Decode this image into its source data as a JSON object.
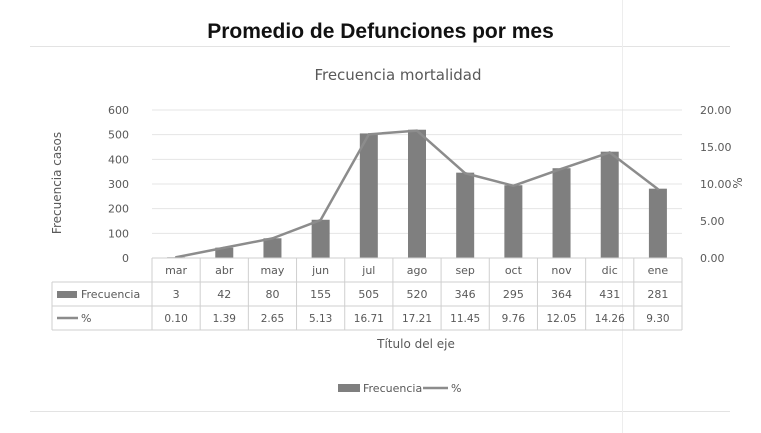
{
  "page": {
    "heading": "Promedio de Defunciones por mes"
  },
  "chart_data": {
    "type": "bar",
    "title": "Frecuencia mortalidad",
    "xlabel": "Título del eje",
    "ylabel": "Frecuencia casos",
    "y2label": "%",
    "ylim": [
      0,
      600
    ],
    "yticks": [
      "0",
      "100",
      "200",
      "300",
      "400",
      "500",
      "600"
    ],
    "y2lim": [
      0,
      20
    ],
    "y2ticks": [
      "0.00",
      "5.00",
      "10.00",
      "15.00",
      "20.00"
    ],
    "categories": [
      "mar",
      "abr",
      "may",
      "jun",
      "jul",
      "ago",
      "sep",
      "oct",
      "nov",
      "dic",
      "ene"
    ],
    "series": [
      {
        "name": "Frecuencia",
        "type": "bar",
        "axis": "left",
        "color": "#7f7f7f",
        "values": [
          3,
          42,
          80,
          155,
          505,
          520,
          346,
          295,
          364,
          431,
          281
        ],
        "labels": [
          "3",
          "42",
          "80",
          "155",
          "505",
          "520",
          "346",
          "295",
          "364",
          "431",
          "281"
        ]
      },
      {
        "name": "%",
        "type": "line",
        "axis": "right",
        "color": "#8c8c8c",
        "values": [
          0.1,
          1.39,
          2.65,
          5.13,
          16.71,
          17.21,
          11.45,
          9.76,
          12.05,
          14.26,
          9.3
        ],
        "labels": [
          "0.10",
          "1.39",
          "2.65",
          "5.13",
          "16.71",
          "17.21",
          "11.45",
          "9.76",
          "12.05",
          "14.26",
          "9.30"
        ]
      }
    ],
    "grid": true,
    "data_table": true,
    "legend_position": "bottom"
  }
}
